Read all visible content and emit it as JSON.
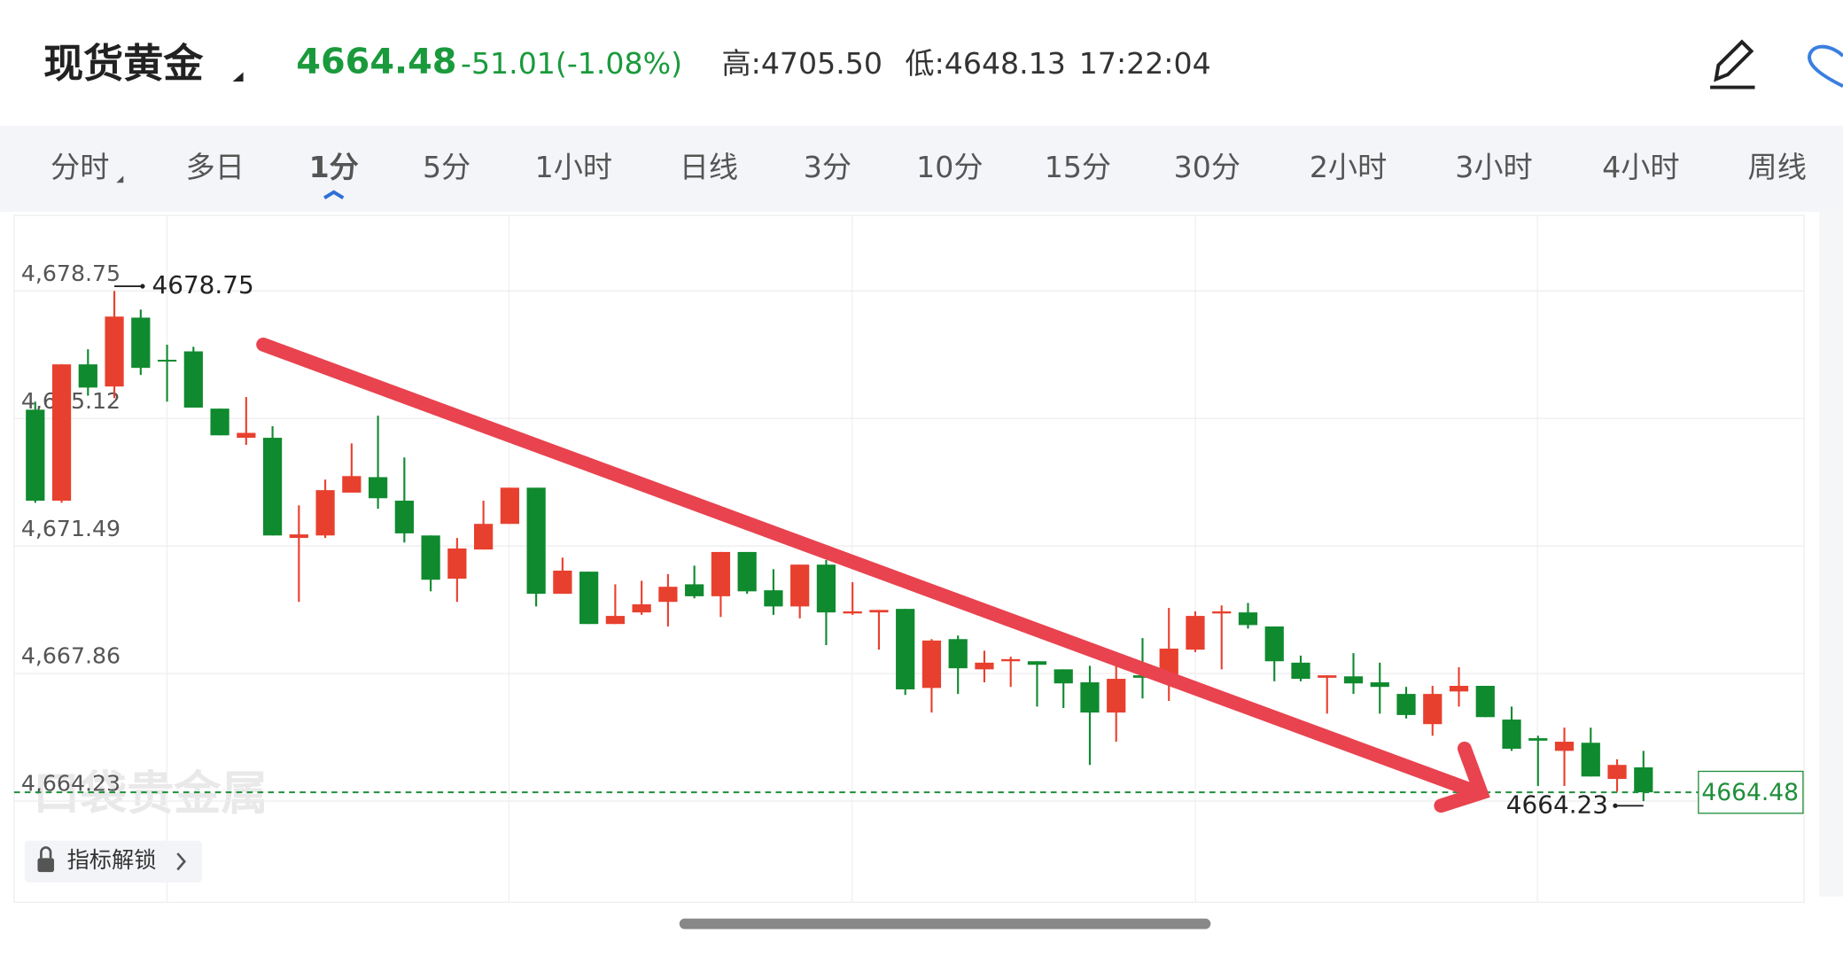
{
  "header": {
    "title": "现货黄金",
    "price": "4664.48",
    "change": "-51.01(-1.08%)",
    "high": "高:4705.50",
    "low": "低:4648.13",
    "time": "17:22:04"
  },
  "tabs": [
    "分时",
    "多日",
    "1分",
    "5分",
    "1小时",
    "日线",
    "3分",
    "10分",
    "15分",
    "30分",
    "2小时",
    "3小时",
    "4小时",
    "周线"
  ],
  "active_tab": 2,
  "watermark": "口袋贵金属",
  "unlock_button": "指标解锁",
  "chart_data": {
    "type": "candlestick",
    "ylim": [
      4661.35,
      4680.9
    ],
    "yticks": [
      {
        "value": 4678.75,
        "label": "4,678.75"
      },
      {
        "value": 4675.12,
        "label": "4,675.12"
      },
      {
        "value": 4671.49,
        "label": "4,671.49"
      },
      {
        "value": 4667.86,
        "label": "4,667.86"
      },
      {
        "value": 4664.23,
        "label": "4,664.23"
      }
    ],
    "grid": true,
    "up_color": "#e8402e",
    "down_color": "#0f8a2e",
    "open": [
      4675.37,
      4672.78,
      4676.66,
      4676.03,
      4677.99,
      4676.79,
      4677.03,
      4675.4,
      4674.57,
      4674.57,
      4671.72,
      4671.79,
      4673.01,
      4673.45,
      4672.78,
      4671.79,
      4670.56,
      4671.39,
      4672.12,
      4673.15,
      4670.13,
      4670.76,
      4669.27,
      4669.6,
      4669.9,
      4670.4,
      4670.06,
      4671.32,
      4670.23,
      4669.77,
      4670.96,
      4669.57,
      4669.6,
      4669.7,
      4667.45,
      4668.84,
      4667.98,
      4668.21,
      4668.21,
      4667.98,
      4667.61,
      4666.75,
      4667.81,
      4667.74,
      4668.54,
      4669.57,
      4669.6,
      4669.2,
      4668.17,
      4667.74,
      4667.78,
      4667.61,
      4667.28,
      4666.42,
      4667.35,
      4667.51,
      4666.55,
      4666.02,
      4665.66,
      4665.89,
      4664.86,
      4665.19
    ],
    "high": [
      4675.6,
      4676.66,
      4677.09,
      4678.75,
      4678.22,
      4677.22,
      4677.16,
      4675.4,
      4675.73,
      4674.9,
      4672.65,
      4673.38,
      4674.41,
      4675.2,
      4674.01,
      4671.79,
      4671.72,
      4672.78,
      4673.15,
      4673.15,
      4671.16,
      4670.76,
      4670.4,
      4670.5,
      4670.69,
      4670.93,
      4671.32,
      4671.32,
      4670.83,
      4670.96,
      4671.09,
      4670.46,
      4669.67,
      4669.7,
      4668.84,
      4668.94,
      4668.51,
      4668.34,
      4668.21,
      4667.98,
      4668.08,
      4668.21,
      4668.87,
      4669.73,
      4669.63,
      4669.8,
      4669.87,
      4669.2,
      4668.37,
      4667.81,
      4668.44,
      4668.17,
      4667.48,
      4667.51,
      4668.04,
      4667.51,
      4666.92,
      4666.09,
      4666.32,
      4666.32,
      4665.42,
      4665.66
    ],
    "low": [
      4672.72,
      4672.72,
      4675.77,
      4675.7,
      4676.36,
      4675.6,
      4675.43,
      4674.64,
      4674.37,
      4671.79,
      4669.9,
      4671.72,
      4673.01,
      4672.55,
      4671.59,
      4670.2,
      4669.9,
      4671.39,
      4672.12,
      4669.77,
      4670.13,
      4669.27,
      4669.27,
      4669.53,
      4669.2,
      4670.0,
      4669.47,
      4670.13,
      4669.53,
      4669.43,
      4668.67,
      4669.53,
      4668.54,
      4667.25,
      4666.75,
      4667.28,
      4667.61,
      4667.48,
      4666.92,
      4666.88,
      4665.26,
      4665.92,
      4667.15,
      4667.08,
      4668.47,
      4667.98,
      4669.14,
      4667.64,
      4667.64,
      4666.72,
      4667.28,
      4666.72,
      4666.58,
      4666.09,
      4666.92,
      4666.62,
      4665.66,
      4664.66,
      4664.66,
      4664.93,
      4664.5,
      4664.23
    ],
    "close": [
      4672.78,
      4676.66,
      4676.0,
      4678.02,
      4676.56,
      4676.76,
      4675.43,
      4674.64,
      4674.71,
      4671.79,
      4671.82,
      4673.08,
      4673.48,
      4672.85,
      4671.85,
      4670.53,
      4671.42,
      4672.12,
      4673.15,
      4670.13,
      4670.79,
      4669.27,
      4669.5,
      4669.83,
      4670.33,
      4670.06,
      4671.32,
      4670.2,
      4669.77,
      4670.96,
      4669.6,
      4669.63,
      4669.67,
      4667.41,
      4668.8,
      4668.01,
      4668.17,
      4668.27,
      4668.11,
      4667.58,
      4666.75,
      4667.71,
      4667.74,
      4668.57,
      4669.5,
      4669.63,
      4669.24,
      4668.21,
      4667.71,
      4667.81,
      4667.58,
      4667.48,
      4666.68,
      4667.28,
      4667.51,
      4666.62,
      4665.72,
      4665.95,
      4665.92,
      4664.93,
      4665.26,
      4664.48
    ],
    "max_label": 4678.75,
    "min_label": 4664.23,
    "last_price": 4664.48,
    "last_color": "#1f8f3a"
  }
}
